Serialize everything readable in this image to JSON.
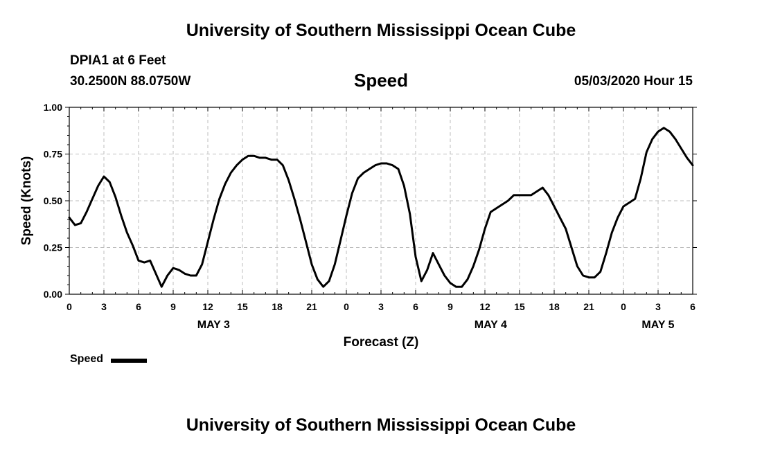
{
  "header": {
    "title": "University of Southern Mississippi Ocean Cube",
    "station": "DPIA1 at 6 Feet",
    "coords": "30.2500N 88.0750W",
    "datetime": "05/03/2020 Hour 15"
  },
  "footer": {
    "title": "University of Southern Mississippi Ocean Cube"
  },
  "legend": {
    "label": "Speed",
    "color": "#000000"
  },
  "chart_data": {
    "type": "line",
    "title": "Speed",
    "xlabel": "Forecast (Z)",
    "ylabel": "Speed (Knots)",
    "ylim": [
      0,
      1
    ],
    "xlim": [
      0,
      54
    ],
    "grid": true,
    "legend_position": "bottom-left",
    "line_color": "#000000",
    "y_ticks": [
      {
        "value": 0,
        "label": "0.00"
      },
      {
        "value": 0.25,
        "label": "0.25"
      },
      {
        "value": 0.5,
        "label": "0.50"
      },
      {
        "value": 0.75,
        "label": "0.75"
      },
      {
        "value": 1,
        "label": "1.00"
      }
    ],
    "x_ticks": [
      {
        "value": 0,
        "label": "0"
      },
      {
        "value": 3,
        "label": "3"
      },
      {
        "value": 6,
        "label": "6"
      },
      {
        "value": 9,
        "label": "9"
      },
      {
        "value": 12,
        "label": "12"
      },
      {
        "value": 15,
        "label": "15"
      },
      {
        "value": 18,
        "label": "18"
      },
      {
        "value": 21,
        "label": "21"
      },
      {
        "value": 24,
        "label": "0"
      },
      {
        "value": 27,
        "label": "3"
      },
      {
        "value": 30,
        "label": "6"
      },
      {
        "value": 33,
        "label": "9"
      },
      {
        "value": 36,
        "label": "12"
      },
      {
        "value": 39,
        "label": "15"
      },
      {
        "value": 42,
        "label": "18"
      },
      {
        "value": 45,
        "label": "21"
      },
      {
        "value": 48,
        "label": "0"
      },
      {
        "value": 51,
        "label": "3"
      },
      {
        "value": 54,
        "label": "6"
      }
    ],
    "date_labels": [
      {
        "value": 12.5,
        "label": "MAY 3"
      },
      {
        "value": 36.5,
        "label": "MAY 4"
      },
      {
        "value": 51,
        "label": "MAY 5"
      }
    ],
    "series": [
      {
        "name": "Speed",
        "x": [
          0,
          0.5,
          1,
          1.5,
          2,
          2.5,
          3,
          3.5,
          4,
          4.5,
          5,
          5.5,
          6,
          6.5,
          7,
          7.5,
          8,
          8.5,
          9,
          9.5,
          10,
          10.5,
          11,
          11.5,
          12,
          12.5,
          13,
          13.5,
          14,
          14.5,
          15,
          15.5,
          16,
          16.5,
          17,
          17.5,
          18,
          18.5,
          19,
          19.5,
          20,
          20.5,
          21,
          21.5,
          22,
          22.5,
          23,
          23.5,
          24,
          24.5,
          25,
          25.5,
          26,
          26.5,
          27,
          27.5,
          28,
          28.5,
          29,
          29.5,
          30,
          30.5,
          31,
          31.5,
          32,
          32.5,
          33,
          33.5,
          34,
          34.5,
          35,
          35.5,
          36,
          36.5,
          37,
          37.5,
          38,
          38.5,
          39,
          39.5,
          40,
          40.5,
          41,
          41.5,
          42,
          42.5,
          43,
          43.5,
          44,
          44.5,
          45,
          45.5,
          46,
          46.5,
          47,
          47.5,
          48,
          48.5,
          49,
          49.5,
          50,
          50.5,
          51,
          51.5,
          52,
          52.5,
          53,
          53.5,
          54
        ],
        "y": [
          0.41,
          0.37,
          0.38,
          0.44,
          0.51,
          0.58,
          0.63,
          0.6,
          0.52,
          0.42,
          0.33,
          0.26,
          0.18,
          0.17,
          0.18,
          0.11,
          0.04,
          0.1,
          0.14,
          0.13,
          0.11,
          0.1,
          0.1,
          0.16,
          0.28,
          0.4,
          0.51,
          0.59,
          0.65,
          0.69,
          0.72,
          0.74,
          0.74,
          0.73,
          0.73,
          0.72,
          0.72,
          0.69,
          0.61,
          0.51,
          0.4,
          0.28,
          0.16,
          0.08,
          0.04,
          0.07,
          0.16,
          0.29,
          0.42,
          0.54,
          0.62,
          0.65,
          0.67,
          0.69,
          0.7,
          0.7,
          0.69,
          0.67,
          0.58,
          0.43,
          0.2,
          0.07,
          0.13,
          0.22,
          0.16,
          0.1,
          0.06,
          0.04,
          0.04,
          0.08,
          0.15,
          0.24,
          0.35,
          0.44,
          0.46,
          0.48,
          0.5,
          0.53,
          0.53,
          0.53,
          0.53,
          0.55,
          0.57,
          0.53,
          0.47,
          0.41,
          0.35,
          0.25,
          0.15,
          0.1,
          0.09,
          0.09,
          0.12,
          0.22,
          0.33,
          0.41,
          0.47,
          0.49,
          0.51,
          0.62,
          0.76,
          0.83,
          0.87,
          0.89,
          0.87,
          0.83,
          0.78,
          0.73,
          0.69
        ]
      }
    ]
  }
}
